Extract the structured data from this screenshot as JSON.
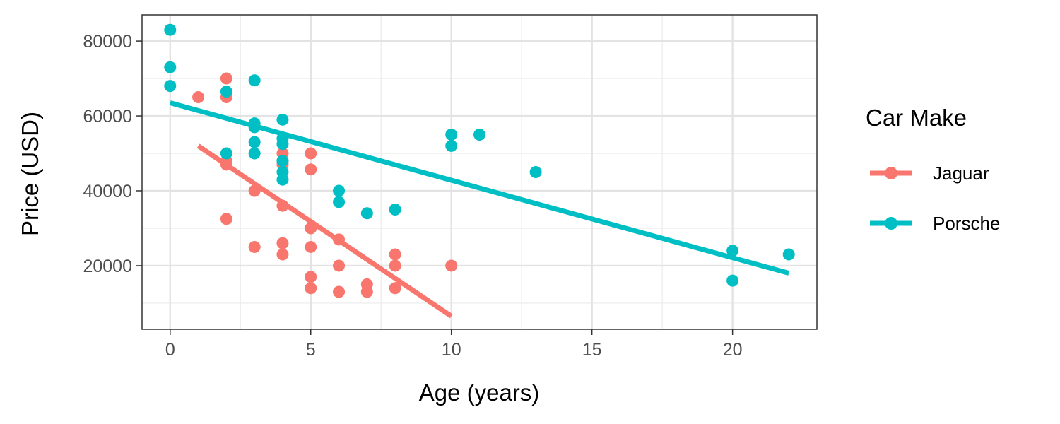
{
  "chart_data": {
    "type": "scatter",
    "title": "",
    "xlabel": "Age (years)",
    "ylabel": "Price (USD)",
    "xlim": [
      -1,
      23
    ],
    "ylim": [
      3000,
      87000
    ],
    "x_ticks": [
      0,
      5,
      10,
      15,
      20
    ],
    "y_ticks": [
      20000,
      40000,
      60000,
      80000
    ],
    "x_tick_labels": [
      "0",
      "5",
      "10",
      "15",
      "20"
    ],
    "y_tick_labels": [
      "20000",
      "40000",
      "60000",
      "80000"
    ],
    "grid": true,
    "legend": {
      "title": "Car Make",
      "position": "right"
    },
    "series": [
      {
        "name": "Jaguar",
        "color": "#F8766D",
        "points": [
          [
            1,
            65000
          ],
          [
            2,
            70000
          ],
          [
            2,
            65000
          ],
          [
            2,
            48000
          ],
          [
            2,
            47000
          ],
          [
            2,
            32500
          ],
          [
            3,
            40000
          ],
          [
            3,
            25000
          ],
          [
            4,
            50000
          ],
          [
            4,
            48000
          ],
          [
            4,
            47000
          ],
          [
            4,
            36000
          ],
          [
            4,
            26000
          ],
          [
            4,
            23000
          ],
          [
            5,
            50000
          ],
          [
            5,
            45700
          ],
          [
            5,
            30000
          ],
          [
            5,
            25000
          ],
          [
            5,
            17000
          ],
          [
            5,
            14000
          ],
          [
            6,
            27000
          ],
          [
            6,
            20000
          ],
          [
            6,
            13000
          ],
          [
            7,
            15000
          ],
          [
            7,
            13000
          ],
          [
            8,
            23000
          ],
          [
            8,
            20000
          ],
          [
            8,
            14000
          ],
          [
            10,
            20000
          ]
        ],
        "trend": {
          "x": [
            1,
            10
          ],
          "y": [
            52000,
            6500
          ]
        }
      },
      {
        "name": "Porsche",
        "color": "#00BFC4",
        "points": [
          [
            0,
            83000
          ],
          [
            0,
            73000
          ],
          [
            0,
            68000
          ],
          [
            2,
            66500
          ],
          [
            2,
            50000
          ],
          [
            3,
            69500
          ],
          [
            3,
            58000
          ],
          [
            3,
            57000
          ],
          [
            3,
            53000
          ],
          [
            3,
            50000
          ],
          [
            4,
            59000
          ],
          [
            4,
            54000
          ],
          [
            4,
            52500
          ],
          [
            4,
            48000
          ],
          [
            4,
            45000
          ],
          [
            4,
            43000
          ],
          [
            6,
            40000
          ],
          [
            6,
            37000
          ],
          [
            7,
            34000
          ],
          [
            8,
            35000
          ],
          [
            10,
            55000
          ],
          [
            10,
            52000
          ],
          [
            11,
            55000
          ],
          [
            13,
            45000
          ],
          [
            20,
            24000
          ],
          [
            20,
            16000
          ],
          [
            22,
            23000
          ]
        ],
        "trend": {
          "x": [
            0,
            22
          ],
          "y": [
            63500,
            18000
          ]
        }
      }
    ]
  }
}
